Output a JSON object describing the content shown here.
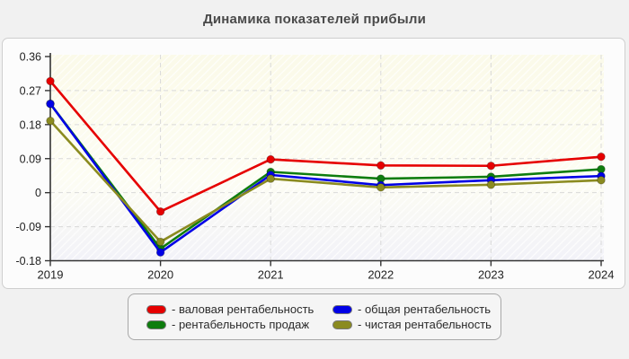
{
  "title": "Динамика показателей прибыли",
  "colors": {
    "page_background": "#f1f1f1",
    "panel_background": "#fcfcfc",
    "panel_border": "#cfcfcf",
    "axis": "#333333",
    "gridline": "#d9d9d9",
    "tick_text": "#222222",
    "title_text": "#4a4a4a",
    "plot_bg_top": "#fbfae9",
    "plot_bg_mid": "#fdfdf3",
    "plot_bg_bottom": "#f2f2f8"
  },
  "chart_data": {
    "type": "line",
    "title": "Динамика показателей прибыли",
    "x": [
      "2019",
      "2020",
      "2021",
      "2022",
      "2023",
      "2024"
    ],
    "series": [
      {
        "name": "валовая рентабельность",
        "color": "#e60000",
        "values": [
          0.295,
          -0.05,
          0.088,
          0.072,
          0.071,
          0.095
        ]
      },
      {
        "name": "рентабельность продаж",
        "color": "#0e7d0e",
        "values": [
          0.235,
          -0.148,
          0.055,
          0.037,
          0.042,
          0.062
        ]
      },
      {
        "name": "общая рентабельность",
        "color": "#0000e6",
        "values": [
          0.235,
          -0.158,
          0.047,
          0.02,
          0.033,
          0.044
        ]
      },
      {
        "name": "чистая рентабельность",
        "color": "#8b8b20",
        "values": [
          0.19,
          -0.13,
          0.037,
          0.014,
          0.021,
          0.033
        ]
      }
    ],
    "ylim": [
      -0.18,
      0.36
    ],
    "y_ticks": [
      0.36,
      0.27,
      0.18,
      0.09,
      0,
      -0.09,
      -0.18
    ],
    "y_tick_labels": [
      "0.36",
      "0.27",
      "0.18",
      "0.09",
      "0",
      "-0.09",
      "-0.18"
    ],
    "grid": "dashed horizontal and vertical",
    "legend_position": "bottom",
    "legend": [
      {
        "label": "- валовая рентабельность",
        "color": "#e60000"
      },
      {
        "label": "- общая рентабельность",
        "color": "#0000e6"
      },
      {
        "label": "- рентабельность продаж",
        "color": "#0e7d0e"
      },
      {
        "label": "- чистая рентабельность",
        "color": "#8b8b20"
      }
    ]
  }
}
